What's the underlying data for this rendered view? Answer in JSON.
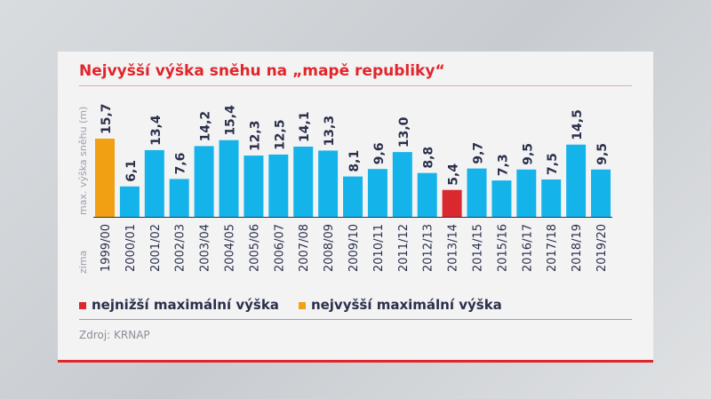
{
  "chart_data": {
    "type": "bar",
    "title": "Nejvyšší výška sněhu na „mapě republiky“",
    "ylabel": "max. výška sněhu (m)",
    "xlabel": "zima",
    "ylim": [
      0,
      16
    ],
    "categories": [
      "1999/00",
      "2000/01",
      "2001/02",
      "2002/03",
      "2003/04",
      "2004/05",
      "2005/06",
      "2006/07",
      "2007/08",
      "2008/09",
      "2009/10",
      "2010/11",
      "2011/12",
      "2012/13",
      "2013/14",
      "2014/15",
      "2015/16",
      "2016/17",
      "2017/18",
      "2018/19",
      "2019/20"
    ],
    "values": [
      15.7,
      6.1,
      13.4,
      7.6,
      14.2,
      15.4,
      12.3,
      12.5,
      14.1,
      13.3,
      8.1,
      9.6,
      13.0,
      8.8,
      5.4,
      9.7,
      7.3,
      9.5,
      7.5,
      14.5,
      9.5
    ],
    "value_labels": [
      "15,7",
      "6,1",
      "13,4",
      "7,6",
      "14,2",
      "15,4",
      "12,3",
      "12,5",
      "14,1",
      "13,3",
      "8,1",
      "9,6",
      "13,0",
      "8,8",
      "5,4",
      "9,7",
      "7,3",
      "9,5",
      "7,5",
      "14,5",
      "9,5"
    ],
    "highlight": {
      "min_index": 14,
      "max_index": 0
    },
    "colors": {
      "default": "#14b4ea",
      "min": "#d9282e",
      "max": "#f0a012",
      "text": "#2b2f4a"
    },
    "legend": [
      {
        "label": "nejnižší maximální výška",
        "color": "#d9282e"
      },
      {
        "label": "nejvyšší maximální výška",
        "color": "#f0a012"
      }
    ],
    "legend_position": "bottom-left",
    "grid": false
  },
  "source": "Zdroj: KRNAP"
}
